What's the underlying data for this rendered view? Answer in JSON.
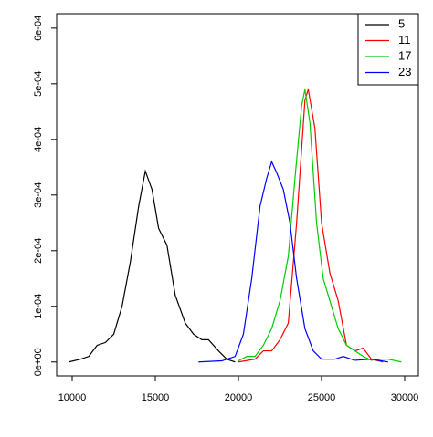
{
  "chart_data": {
    "type": "line",
    "xlim": [
      9066,
      30824
    ],
    "ylim": [
      -2.5e-05,
      0.000626
    ],
    "xticks": [
      10000,
      15000,
      20000,
      25000,
      30000
    ],
    "yticks": [
      {
        "value": 0,
        "label": "0e+00"
      },
      {
        "value": 0.0001,
        "label": "1e-04"
      },
      {
        "value": 0.0002,
        "label": "2e-04"
      },
      {
        "value": 0.0003,
        "label": "3e-04"
      },
      {
        "value": 0.0004,
        "label": "4e-04"
      },
      {
        "value": 0.0005,
        "label": "5e-04"
      },
      {
        "value": 0.0006,
        "label": "6e-04"
      }
    ],
    "legend": "top-right",
    "series": [
      {
        "name": "5",
        "color": "#000000",
        "x": [
          9800,
          10500,
          11000,
          11500,
          12000,
          12500,
          13000,
          13500,
          14000,
          14400,
          14800,
          15200,
          15700,
          16200,
          16800,
          17300,
          17800,
          18200,
          18800,
          19300,
          19800
        ],
        "values": [
          0,
          5e-06,
          1e-05,
          3e-05,
          3.5e-05,
          5e-05,
          0.0001,
          0.00018,
          0.00028,
          0.000343,
          0.00031,
          0.00024,
          0.00021,
          0.00012,
          7e-05,
          5e-05,
          4e-05,
          4e-05,
          2e-05,
          5e-06,
          0
        ]
      },
      {
        "name": "11",
        "color": "#ff0000",
        "x": [
          20000,
          21000,
          21500,
          22000,
          22500,
          23000,
          23500,
          24000,
          24200,
          24600,
          25000,
          25500,
          26000,
          26500,
          27000,
          27500,
          28000,
          28700
        ],
        "values": [
          0,
          5e-06,
          2e-05,
          2e-05,
          4e-05,
          7e-05,
          0.00025,
          0.00047,
          0.00049,
          0.00042,
          0.00025,
          0.00016,
          0.00011,
          3e-05,
          2e-05,
          2.5e-05,
          5e-06,
          0
        ]
      },
      {
        "name": "17",
        "color": "#00cd00",
        "x": [
          20000,
          20500,
          21000,
          21500,
          22000,
          22500,
          23000,
          23400,
          23800,
          24000,
          24300,
          24700,
          25100,
          25500,
          26000,
          26500,
          27000,
          27500,
          28000,
          28500,
          29000,
          29800
        ],
        "values": [
          2e-06,
          1e-05,
          1e-05,
          3e-05,
          6e-05,
          0.00011,
          0.00019,
          0.00033,
          0.00046,
          0.00049,
          0.00043,
          0.00025,
          0.00015,
          0.00011,
          6e-05,
          3e-05,
          2e-05,
          1e-05,
          3e-06,
          5e-06,
          5e-06,
          0
        ]
      },
      {
        "name": "23",
        "color": "#0000ff",
        "x": [
          17600,
          19000,
          19800,
          20300,
          20800,
          21300,
          21700,
          22000,
          22300,
          22700,
          23100,
          23500,
          24000,
          24500,
          25000,
          25800,
          26300,
          27000,
          28000,
          29000
        ],
        "values": [
          0,
          2e-06,
          1e-05,
          5e-05,
          0.00015,
          0.00028,
          0.00033,
          0.00036,
          0.00034,
          0.00031,
          0.00025,
          0.00015,
          6e-05,
          2e-05,
          5e-06,
          5e-06,
          1e-05,
          3e-06,
          5e-06,
          0
        ]
      }
    ]
  }
}
